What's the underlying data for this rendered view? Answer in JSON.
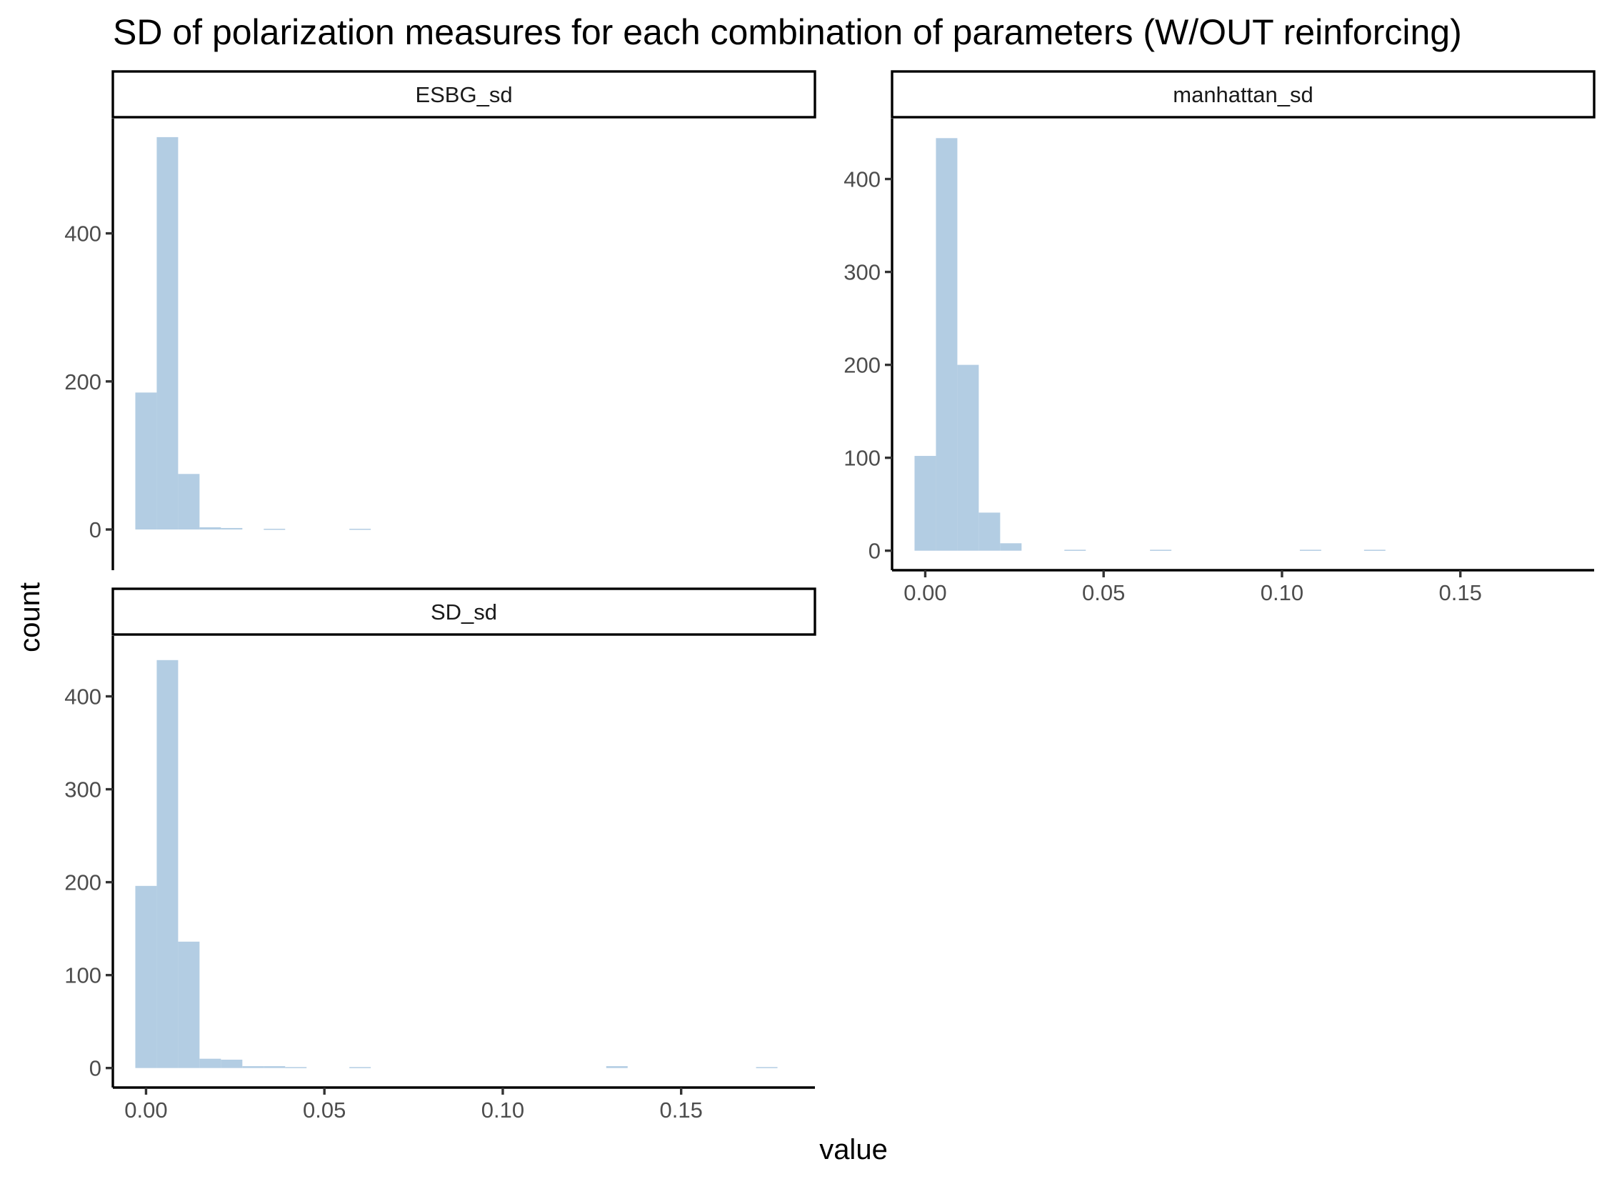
{
  "chart_data": {
    "type": "bar",
    "title": "SD of polarization measures for each combination of parameters (W/OUT reinforcing)",
    "xlabel": "value",
    "ylabel": "count",
    "bar_color": "#b3cde3",
    "bin_width": 0.006,
    "xlim": [
      -0.0093,
      0.1875
    ],
    "x_ticks": [
      0.0,
      0.05,
      0.1,
      0.15
    ],
    "x_tick_labels": [
      "0.00",
      "0.05",
      "0.10",
      "0.15"
    ],
    "grid": false,
    "panels": [
      {
        "facet": "ESBG_sd",
        "ylim": [
          -55,
          555
        ],
        "y_ticks": [
          0,
          200,
          400
        ],
        "y_tick_labels": [
          "0",
          "200",
          "400"
        ],
        "x": [
          0.0,
          0.006,
          0.012,
          0.018,
          0.024,
          0.036,
          0.06
        ],
        "values": [
          185,
          530,
          75,
          3,
          2,
          1,
          1
        ]
      },
      {
        "facet": "manhattan_sd",
        "ylim": [
          -21,
          465
        ],
        "y_ticks": [
          0,
          100,
          200,
          300,
          400
        ],
        "y_tick_labels": [
          "0",
          "100",
          "200",
          "300",
          "400"
        ],
        "x": [
          0.0,
          0.006,
          0.012,
          0.018,
          0.024,
          0.042,
          0.066,
          0.108,
          0.126
        ],
        "values": [
          102,
          444,
          200,
          41,
          8,
          1,
          1,
          1,
          1
        ]
      },
      {
        "facet": "SD_sd",
        "ylim": [
          -21,
          465
        ],
        "y_ticks": [
          0,
          100,
          200,
          300,
          400
        ],
        "y_tick_labels": [
          "0",
          "100",
          "200",
          "300",
          "400"
        ],
        "x": [
          0.0,
          0.006,
          0.012,
          0.018,
          0.024,
          0.03,
          0.036,
          0.042,
          0.06,
          0.132,
          0.174
        ],
        "values": [
          196,
          439,
          136,
          10,
          9,
          2,
          2,
          1,
          1,
          2,
          1
        ]
      }
    ]
  }
}
